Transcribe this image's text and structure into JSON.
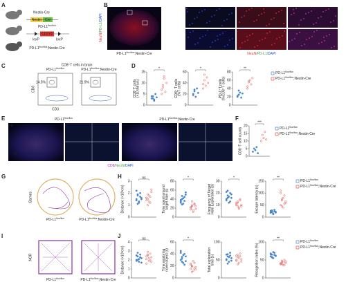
{
  "figure": {
    "panel_labels": [
      "A",
      "B",
      "C",
      "D",
      "E",
      "F",
      "G",
      "H",
      "I",
      "J"
    ],
    "A": {
      "nestin_cre": "Nestin-Cre",
      "nestin": "Nestin",
      "cre": "Cre",
      "cd274": "CD274",
      "loxp_left": "loxP",
      "loxp_right": "loxP",
      "flox": {
        "main": "PD-L1",
        "sup": "flox/flox"
      },
      "cross": {
        "main": "PD-L1",
        "sup": "flox/flox",
        "tail": ";Nestin-Cre"
      }
    },
    "B": {
      "side_caption": [
        {
          "text": "NeuN/",
          "color": "#e53935"
        },
        {
          "text": "PD-L1/",
          "color": "#43a047"
        },
        {
          "text": "DAPI",
          "color": "#1e4fd8"
        }
      ],
      "box_label": "i",
      "box_label_2": "ii",
      "genotype": {
        "main": "PD-L1",
        "sup": "flox/flox",
        "tail": ";Nestin-Cre"
      },
      "row_label_1": "i",
      "row_label_2": "ii",
      "caption": [
        {
          "text": "NeuN/",
          "color": "#e53935"
        },
        {
          "text": "PD-L1/",
          "color": "#43a047"
        },
        {
          "text": "DAPI",
          "color": "#1e4fd8"
        }
      ]
    },
    "C": {
      "title": "CD8⁺T cells in brain",
      "left": {
        "main": "PD-L1",
        "sup": "flox/flox"
      },
      "right": {
        "main": "PD-L1",
        "sup": "flox/flox",
        "tail": ";Nestin-Cre"
      },
      "gate_left": "14.5%",
      "gate_right": "21.9%",
      "y_axis": "CD8",
      "x_axis": "CD3"
    },
    "E": {
      "left": {
        "main": "PD-L1",
        "sup": "flox/flox"
      },
      "right": {
        "main": "PD-L1",
        "sup": "flox/flox",
        "tail": ";Nestin-Cre"
      },
      "regions": [
        "i",
        "ii",
        "iii",
        "IV"
      ],
      "caption": [
        {
          "text": "CD8/",
          "color": "#c21fc2"
        },
        {
          "text": "NeuN/",
          "color": "#3ab54a"
        },
        {
          "text": "DAPI",
          "color": "#1e4fd8"
        }
      ]
    },
    "G": {
      "side": "Barnes",
      "left": {
        "main": "PD-L1",
        "sup": "flox/flox"
      },
      "right": {
        "main": "PD-L1",
        "sup": "flox/flox",
        "tail": ";Nestin-Cre"
      }
    },
    "I": {
      "side": "NOR",
      "left": {
        "main": "PD-L1",
        "sup": "flox/flox"
      },
      "right": {
        "main": "PD-L1",
        "sup": "flox/flox",
        "tail": ";Nestin-Cre"
      }
    },
    "legends": [
      [
        {
          "label": {
            "main": "PD-L1",
            "sup": "flox/flox"
          },
          "color": "#4a86c8"
        },
        {
          "label": {
            "main": "PD-L1",
            "sup": "flox/flox",
            "tail": ";Nestin-Cre"
          },
          "color": "#e0524c"
        }
      ],
      [
        {
          "label": {
            "main": "PD-L1",
            "sup": "flox/flox"
          },
          "color": "#4a86c8"
        },
        {
          "label": {
            "main": "PD-L1",
            "sup": "flox/flox",
            "tail": ";Nestin-Cre"
          },
          "color": "#e0524c"
        }
      ],
      [
        {
          "label": {
            "main": "PD-L1",
            "sup": "flox/flox"
          },
          "color": "#4a86c8"
        },
        {
          "label": {
            "main": "PD-L1",
            "sup": "flox/flox",
            "tail": ";Nestin-Cre"
          },
          "color": "#e0524c"
        }
      ],
      [
        {
          "label": {
            "main": "PD-L1",
            "sup": "flox/flox"
          },
          "color": "#4a86c8"
        },
        {
          "label": {
            "main": "PD-L1",
            "sup": "flox/flox",
            "tail": ";Nestin-Cre"
          },
          "color": "#e0524c"
        }
      ]
    ]
  },
  "chart_data": [
    {
      "type": "strip",
      "ylabel": [
        "CD8⁺T cells",
        "(×10³/Brain)"
      ],
      "ylim": [
        0,
        15
      ],
      "yticks": [
        0,
        5,
        10,
        15
      ],
      "significance": "*",
      "series": [
        {
          "color": "#4a86c8",
          "marker": "filled",
          "values": [
            3,
            4,
            2.5,
            5,
            3.5,
            4,
            3,
            2
          ]
        },
        {
          "color": "#e0524c",
          "marker": "open",
          "values": [
            5,
            8,
            12,
            6,
            10,
            7,
            9,
            13
          ]
        }
      ]
    },
    {
      "type": "strip",
      "ylabel": [
        "CD8⁺ T cells",
        "(%T cells)"
      ],
      "ylim": [
        0,
        60
      ],
      "yticks": [
        0,
        20,
        40,
        60
      ],
      "significance": "*",
      "series": [
        {
          "color": "#4a86c8",
          "marker": "filled",
          "values": [
            20,
            25,
            15,
            30,
            22,
            18,
            28
          ]
        },
        {
          "color": "#e0524c",
          "marker": "open",
          "values": [
            30,
            45,
            35,
            50,
            40,
            38,
            55
          ]
        }
      ]
    },
    {
      "type": "strip",
      "ylabel": [
        "PD-1⁺T cells",
        "(%CD8⁺T cells)"
      ],
      "ylim": [
        0,
        80
      ],
      "yticks": [
        0,
        20,
        40,
        60,
        80
      ],
      "significance": "**",
      "series": [
        {
          "color": "#4a86c8",
          "marker": "filled",
          "values": [
            20,
            25,
            30,
            18,
            28,
            22,
            35
          ]
        },
        {
          "color": "#e0524c",
          "marker": "open",
          "values": [
            45,
            55,
            60,
            50,
            65,
            40,
            58
          ]
        }
      ]
    },
    {
      "type": "strip",
      "ylabel": [
        "CD8⁺T cell counts"
      ],
      "ylim": [
        0,
        20
      ],
      "yticks": [
        0,
        5,
        10,
        15,
        20
      ],
      "significance": "***",
      "series": [
        {
          "color": "#4a86c8",
          "marker": "filled",
          "values": [
            3,
            5,
            4,
            6,
            2
          ]
        },
        {
          "color": "#e0524c",
          "marker": "open",
          "values": [
            10,
            14,
            12,
            16,
            11
          ]
        }
      ]
    },
    {
      "type": "strip",
      "ylabel": [
        "Distance (×10³cm)"
      ],
      "ylim": [
        0,
        3
      ],
      "yticks": [
        0,
        1,
        2,
        3
      ],
      "significance": "ns",
      "series": [
        {
          "color": "#4a86c8",
          "marker": "filled",
          "values": [
            1.5,
            1.8,
            1.2,
            2.0,
            1.6,
            1.4,
            1.9,
            1.3,
            1.7,
            1.5,
            2.2,
            1.1
          ]
        },
        {
          "color": "#e0524c",
          "marker": "open",
          "values": [
            1.6,
            1.9,
            1.3,
            1.7,
            2.1,
            1.4,
            1.5,
            1.8,
            1.2,
            2.3,
            1.6,
            1.0
          ]
        }
      ]
    },
    {
      "type": "strip",
      "ylabel": [
        "Time spent around",
        "target hole (s)"
      ],
      "ylim": [
        0,
        80
      ],
      "yticks": [
        0,
        20,
        40,
        60,
        80
      ],
      "significance": "*",
      "series": [
        {
          "color": "#4a86c8",
          "marker": "filled",
          "values": [
            35,
            40,
            30,
            45,
            50,
            38,
            28,
            42,
            36,
            55,
            32,
            47
          ]
        },
        {
          "color": "#e0524c",
          "marker": "open",
          "values": [
            20,
            25,
            15,
            30,
            18,
            22,
            35,
            12,
            28,
            24,
            17,
            26
          ]
        }
      ]
    },
    {
      "type": "strip",
      "ylabel": [
        "Frequency of Target",
        "Hole Exploration (s)"
      ],
      "ylim": [
        0,
        30
      ],
      "yticks": [
        0,
        10,
        20,
        30
      ],
      "significance": "*",
      "series": [
        {
          "color": "#4a86c8",
          "marker": "filled",
          "values": [
            15,
            18,
            12,
            20,
            16,
            14,
            22,
            17,
            13,
            19,
            21,
            16
          ]
        },
        {
          "color": "#e0524c",
          "marker": "open",
          "values": [
            10,
            12,
            8,
            14,
            9,
            11,
            13,
            7,
            15,
            10,
            12,
            9
          ]
        }
      ]
    },
    {
      "type": "strip",
      "ylabel": [
        "Escape latency (s)"
      ],
      "ylim": [
        0,
        150
      ],
      "yticks": [
        0,
        50,
        100,
        150
      ],
      "significance": "**",
      "series": [
        {
          "color": "#4a86c8",
          "marker": "filled",
          "values": [
            20,
            25,
            15,
            30,
            22,
            18,
            28,
            12,
            24,
            19,
            26,
            21
          ]
        },
        {
          "color": "#e0524c",
          "marker": "open",
          "values": [
            50,
            70,
            40,
            90,
            60,
            110,
            45,
            80,
            55,
            65,
            100,
            75
          ]
        }
      ]
    },
    {
      "type": "strip",
      "ylabel": [
        "Distance (×10³cm)"
      ],
      "ylim": [
        0,
        4
      ],
      "yticks": [
        0,
        1,
        2,
        3,
        4
      ],
      "significance": "ns",
      "series": [
        {
          "color": "#4a86c8",
          "marker": "filled",
          "values": [
            2.0,
            2.4,
            1.8,
            2.6,
            2.2,
            1.9,
            2.8,
            2.1,
            2.3,
            1.7,
            2.5,
            2.0
          ]
        },
        {
          "color": "#e0524c",
          "marker": "open",
          "values": [
            2.1,
            2.5,
            1.9,
            2.7,
            2.3,
            1.6,
            2.9,
            2.2,
            2.0,
            1.8,
            2.4,
            2.6
          ]
        }
      ]
    },
    {
      "type": "strip",
      "ylabel": [
        "Time exploring",
        "novel object (s)"
      ],
      "ylim": [
        0,
        60
      ],
      "yticks": [
        0,
        20,
        40,
        60
      ],
      "significance": "*",
      "series": [
        {
          "color": "#4a86c8",
          "marker": "filled",
          "values": [
            30,
            35,
            25,
            40,
            28,
            45,
            32,
            38,
            22,
            36,
            42,
            27
          ]
        },
        {
          "color": "#e0524c",
          "marker": "open",
          "values": [
            15,
            20,
            12,
            25,
            18,
            22,
            10,
            28,
            16,
            14,
            24,
            19
          ]
        }
      ]
    },
    {
      "type": "strip",
      "ylabel": [
        "Total exploration",
        "time (s)"
      ],
      "ylim": [
        0,
        100
      ],
      "yticks": [
        0,
        50,
        100
      ],
      "series": [
        {
          "color": "#4a86c8",
          "marker": "filled",
          "values": [
            50,
            60,
            45,
            70,
            55,
            65,
            40,
            58,
            62,
            48,
            52,
            66
          ]
        },
        {
          "color": "#e0524c",
          "marker": "open",
          "values": [
            48,
            58,
            42,
            68,
            52,
            62,
            38,
            56,
            60,
            46,
            50,
            64
          ]
        }
      ]
    },
    {
      "type": "strip",
      "ylabel": [
        "Recognition index (%)"
      ],
      "ylim": [
        0,
        100
      ],
      "yticks": [
        0,
        50,
        100
      ],
      "significance": "**",
      "series": [
        {
          "color": "#4a86c8",
          "marker": "filled",
          "values": [
            60,
            65,
            55,
            70,
            62,
            68,
            58,
            72,
            64,
            61,
            66,
            57
          ]
        },
        {
          "color": "#e0524c",
          "marker": "open",
          "values": [
            40,
            45,
            35,
            50,
            42,
            38,
            48,
            44,
            36,
            46,
            41,
            39
          ]
        }
      ]
    }
  ]
}
